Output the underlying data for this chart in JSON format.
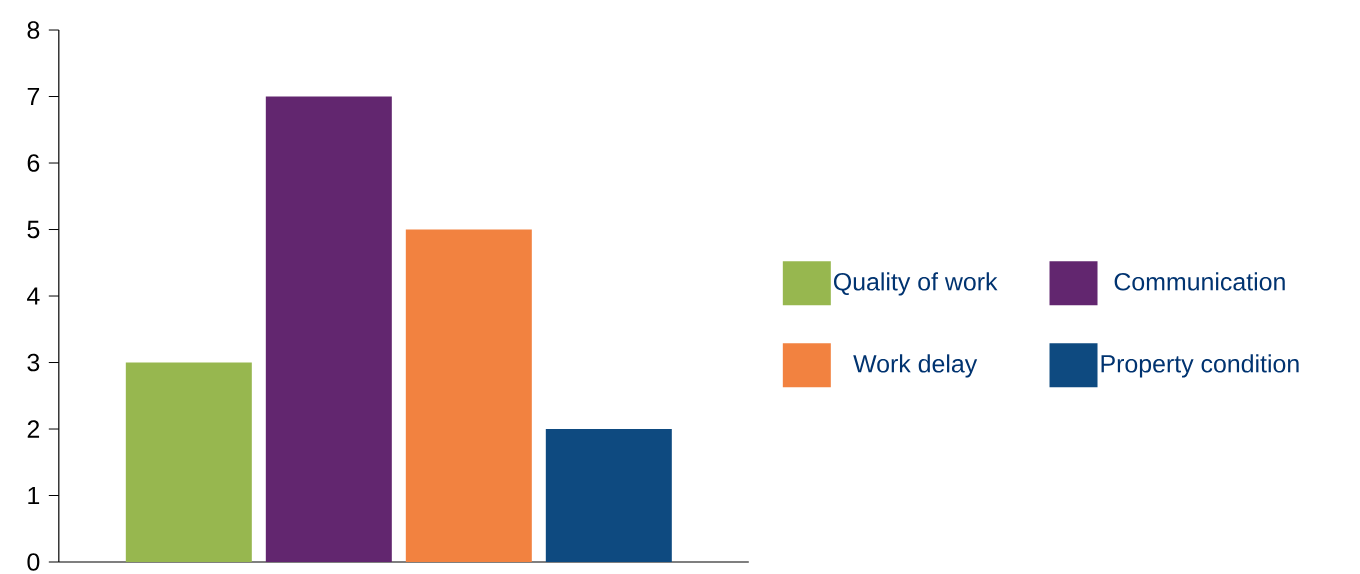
{
  "chart_data": {
    "type": "bar",
    "categories": [
      null,
      null,
      null,
      null
    ],
    "series": [
      {
        "name": "Quality of work",
        "color": "#97b74f",
        "values": [
          3,
          null,
          null,
          null
        ]
      },
      {
        "name": "Communication",
        "color": "#62266f",
        "values": [
          null,
          7,
          null,
          null
        ]
      },
      {
        "name": "Work delay",
        "color": "#f28240",
        "values": [
          null,
          null,
          5,
          null
        ]
      },
      {
        "name": "Property condition",
        "color": "#0e4a80",
        "values": [
          null,
          null,
          null,
          2
        ]
      }
    ],
    "ylim": [
      0,
      8
    ],
    "yticks": [
      0,
      1,
      2,
      3,
      4,
      5,
      6,
      7,
      8
    ],
    "grid": false,
    "legend": "right"
  }
}
